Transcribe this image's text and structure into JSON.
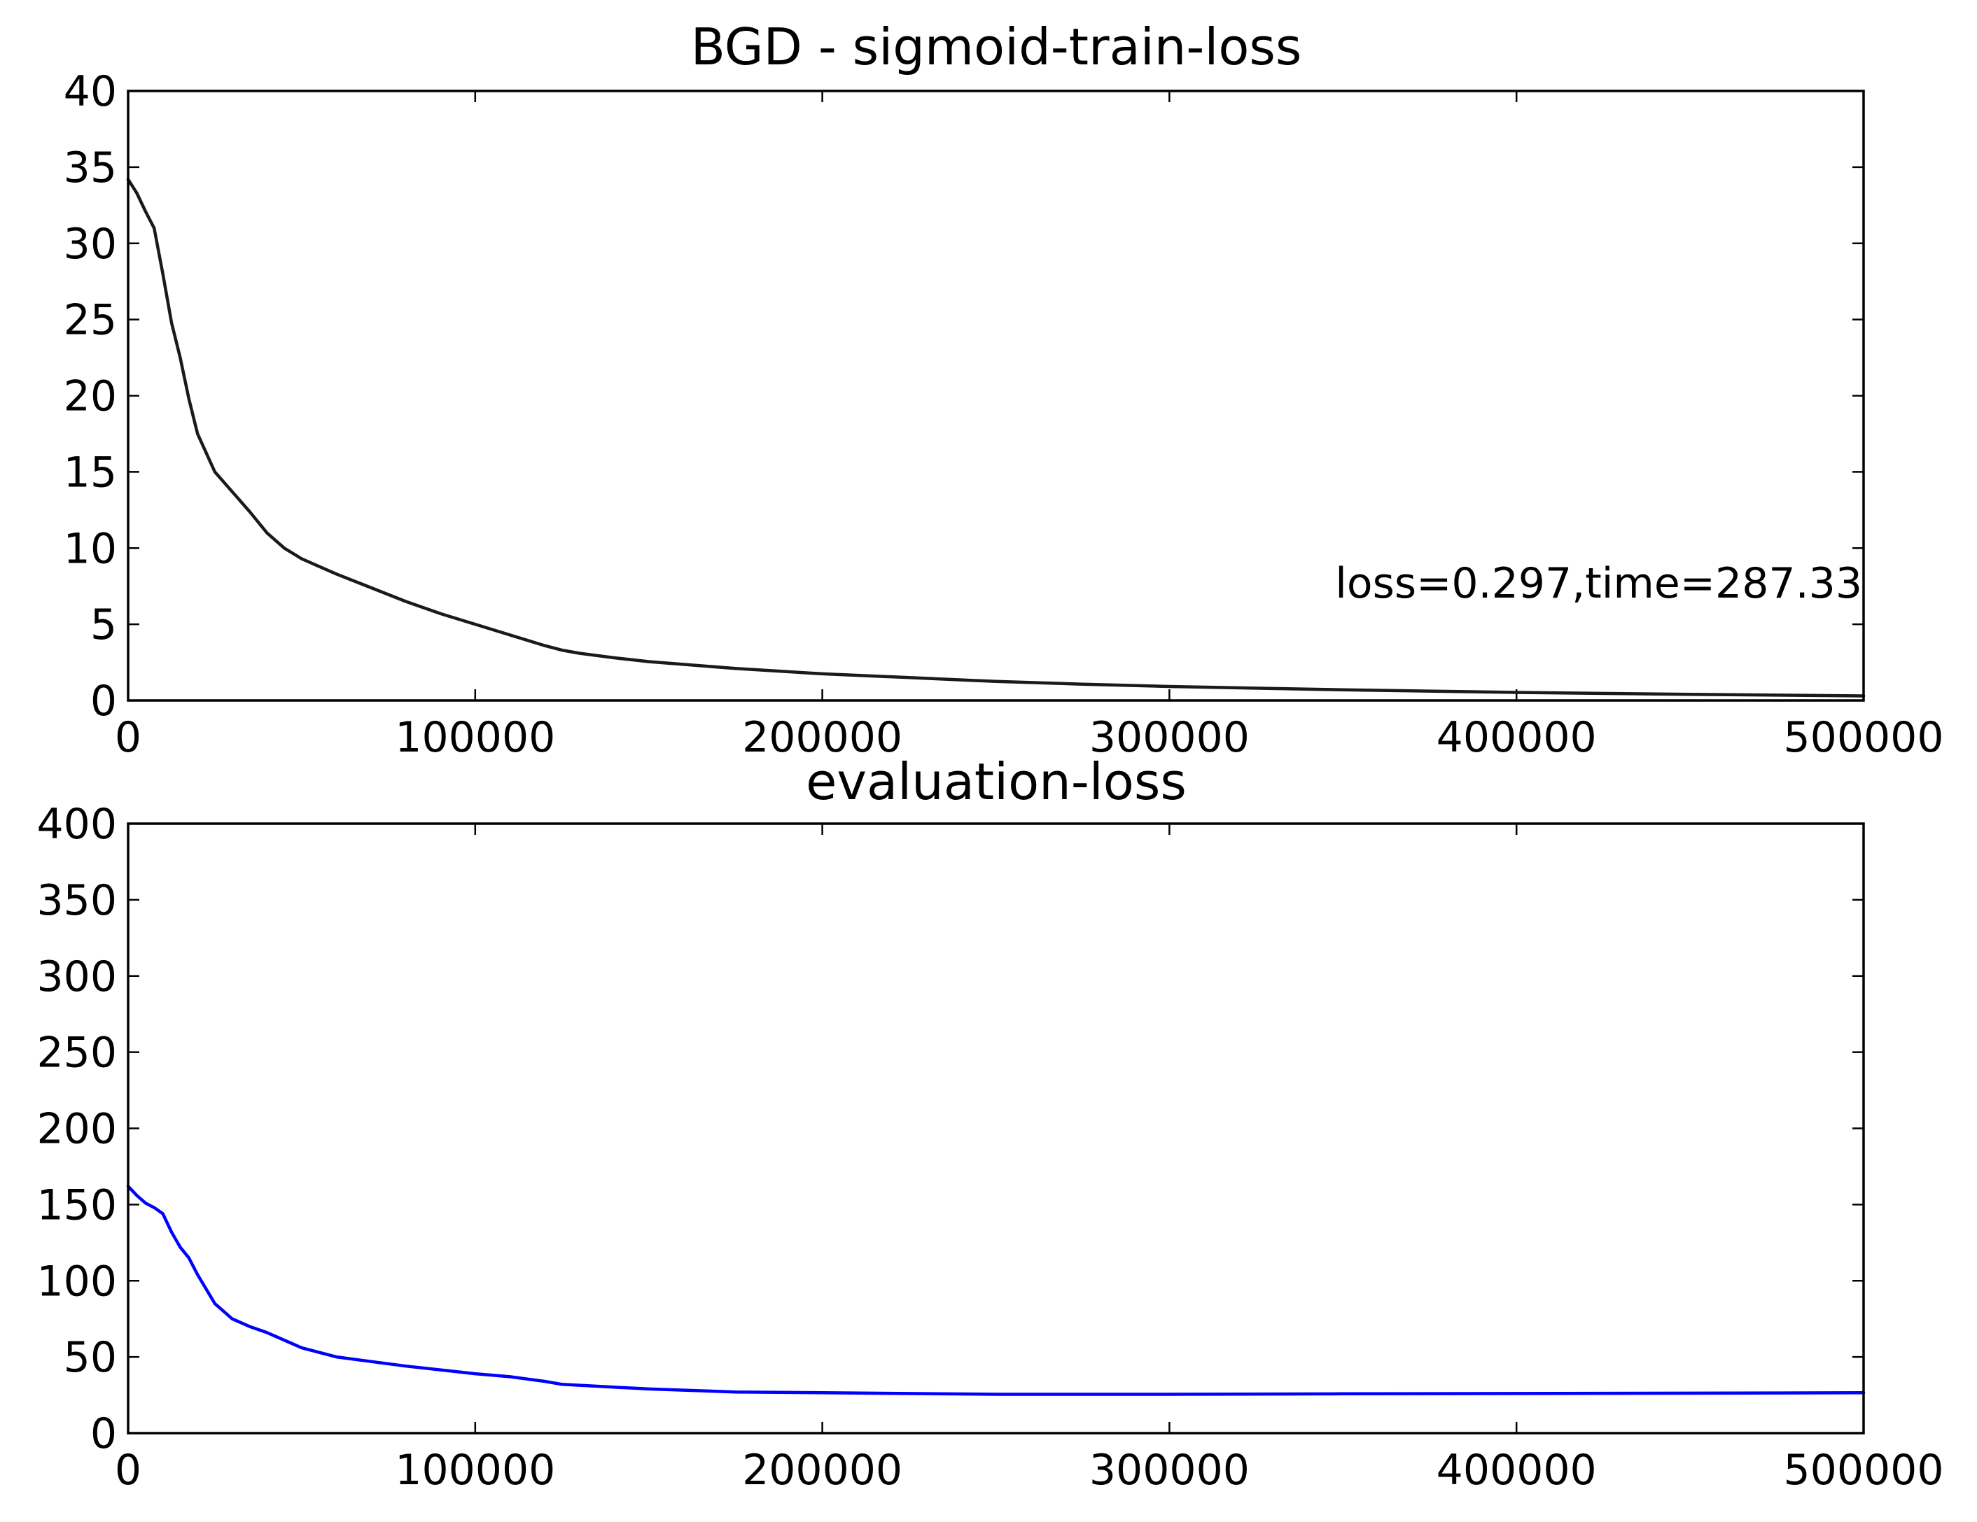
{
  "chart_data": [
    {
      "type": "line",
      "title": "BGD - sigmoid-train-loss",
      "xlabel": "",
      "ylabel": "",
      "xlim": [
        0,
        500000
      ],
      "ylim": [
        0,
        40
      ],
      "xticks": [
        0,
        100000,
        200000,
        300000,
        400000,
        500000
      ],
      "xtick_labels": [
        "0",
        "100000",
        "200000",
        "300000",
        "400000",
        "500000"
      ],
      "yticks": [
        0,
        5,
        10,
        15,
        20,
        25,
        30,
        35,
        40
      ],
      "ytick_labels": [
        "0",
        "5",
        "10",
        "15",
        "20",
        "25",
        "30",
        "35",
        "40"
      ],
      "grid": false,
      "annotation": "loss=0.297,time=287.33",
      "series": [
        {
          "color": "#1a1a1a",
          "x": [
            0,
            2500,
            5000,
            7500,
            10000,
            12500,
            15000,
            17500,
            20000,
            25000,
            30000,
            35000,
            40000,
            45000,
            50000,
            55000,
            60000,
            70000,
            80000,
            90000,
            100000,
            110000,
            120000,
            125000,
            130000,
            140000,
            150000,
            175000,
            200000,
            225000,
            250000,
            275000,
            300000,
            350000,
            400000,
            450000,
            500000
          ],
          "y": [
            34.2,
            33.3,
            32.1,
            31.0,
            28.0,
            24.8,
            22.5,
            19.8,
            17.5,
            15.0,
            13.7,
            12.4,
            11.0,
            10.0,
            9.3,
            8.8,
            8.3,
            7.4,
            6.5,
            5.7,
            5.0,
            4.3,
            3.6,
            3.3,
            3.1,
            2.8,
            2.55,
            2.1,
            1.75,
            1.5,
            1.25,
            1.07,
            0.92,
            0.7,
            0.53,
            0.4,
            0.3
          ]
        }
      ]
    },
    {
      "type": "line",
      "title": "evaluation-loss",
      "xlabel": "",
      "ylabel": "",
      "xlim": [
        0,
        500000
      ],
      "ylim": [
        0,
        400
      ],
      "xticks": [
        0,
        100000,
        200000,
        300000,
        400000,
        500000
      ],
      "xtick_labels": [
        "0",
        "100000",
        "200000",
        "300000",
        "400000",
        "500000"
      ],
      "yticks": [
        0,
        50,
        100,
        150,
        200,
        250,
        300,
        350,
        400
      ],
      "ytick_labels": [
        "0",
        "50",
        "100",
        "150",
        "200",
        "250",
        "300",
        "350",
        "400"
      ],
      "grid": false,
      "series": [
        {
          "color": "#0000ff",
          "x": [
            0,
            2500,
            5000,
            7500,
            10000,
            12500,
            15000,
            17500,
            20000,
            25000,
            30000,
            35000,
            40000,
            50000,
            60000,
            70000,
            80000,
            100000,
            110000,
            120000,
            125000,
            150000,
            175000,
            200000,
            250000,
            300000,
            350000,
            400000,
            450000,
            500000
          ],
          "y": [
            162,
            156,
            151,
            148,
            144,
            132,
            122,
            115,
            104,
            85,
            75,
            70,
            66,
            56,
            50,
            47,
            44,
            39,
            37,
            34,
            32,
            29,
            27,
            26.5,
            25.5,
            25.5,
            25.8,
            26,
            26.2,
            26.5
          ]
        }
      ]
    }
  ]
}
